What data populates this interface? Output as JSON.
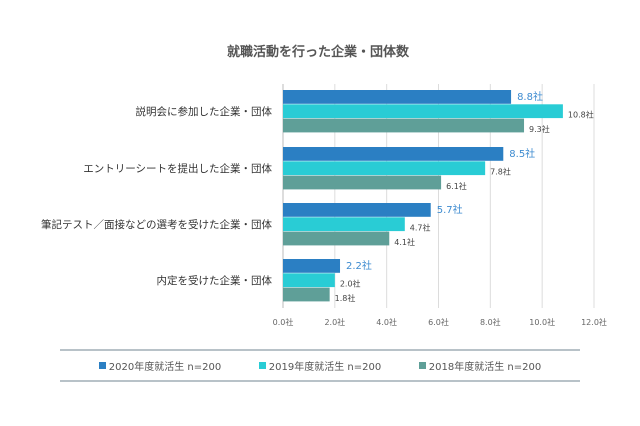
{
  "chart_data": {
    "type": "bar",
    "orientation": "horizontal",
    "title": "就職活動を行った企業・団体数",
    "categories": [
      "説明会に参加した企業・団体",
      "エントリーシートを提出した企業・団体",
      "筆記テスト／面接などの選考を受けた企業・団体",
      "内定を受けた企業・団体"
    ],
    "series": [
      {
        "name": "2020年度就活生 n=200",
        "color": "#2b7fc3",
        "values": [
          8.8,
          8.5,
          5.7,
          2.2
        ]
      },
      {
        "name": "2019年度就活生 n=200",
        "color": "#29ccd5",
        "values": [
          10.8,
          7.8,
          4.7,
          2.0
        ]
      },
      {
        "name": "2018年度就活生 n=200",
        "color": "#5f9f98",
        "values": [
          9.3,
          6.1,
          4.1,
          1.8
        ]
      }
    ],
    "unit": "社",
    "xlim": [
      0,
      12
    ],
    "xticks": [
      "0.0社",
      "2.0社",
      "4.0社",
      "6.0社",
      "8.0社",
      "10.0社",
      "12.0社"
    ],
    "grid": true,
    "legend": "bottom"
  }
}
